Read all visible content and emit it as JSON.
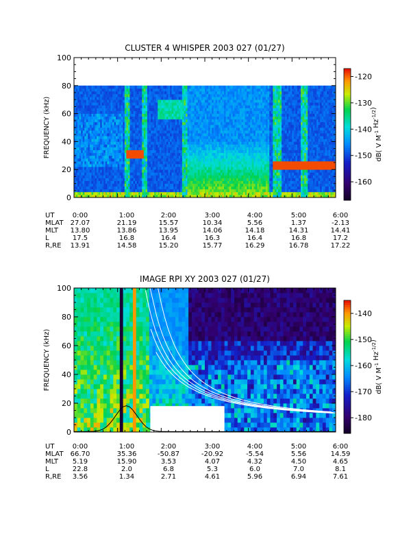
{
  "chart_data": [
    {
      "type": "heatmap",
      "title": "CLUSTER 4 WHISPER 2003 027 (01/27)",
      "ylabel": "FREQUENCY (kHz)",
      "ylim": [
        0,
        100
      ],
      "yticks": [
        "0",
        "20",
        "40",
        "60",
        "80",
        "100"
      ],
      "data_top_khz": 80,
      "colorbar": {
        "label_main": "dB( V M",
        "label_sup1": "-1",
        "label_mid": " Hz",
        "label_sup2": "-1/2",
        "label_end": ")",
        "range": [
          -167,
          -117
        ],
        "ticks": [
          "-120",
          "-130",
          "-140",
          "-150",
          "-160"
        ],
        "tick_values": [
          -120,
          -130,
          -140,
          -150,
          -160
        ]
      },
      "data_gaps": [],
      "table": {
        "row_labels": [
          "UT",
          "MLAT",
          "MLT",
          "L",
          "R,RE"
        ],
        "columns": [
          [
            "0:00",
            "27.07",
            "13.80",
            "17.5",
            "13.91"
          ],
          [
            "1:00",
            "21.19",
            "13.86",
            "16.8",
            "14.58"
          ],
          [
            "2:00",
            "15.57",
            "13.95",
            "16.4",
            "15.20"
          ],
          [
            "3:00",
            "10.34",
            "14.06",
            "16.3",
            "15.77"
          ],
          [
            "4:00",
            "5.56",
            "14.18",
            "16.4",
            "16.29"
          ],
          [
            "5:00",
            "1.37",
            "14.31",
            "16.8",
            "16.78"
          ],
          [
            "6:00",
            "-2.13",
            "14.41",
            "17.2",
            "17.22"
          ]
        ]
      }
    },
    {
      "type": "heatmap",
      "title": "IMAGE RPI XY 2003 027 (01/27)",
      "ylabel": "FREQUENCY (kHz)",
      "ylim": [
        0,
        100
      ],
      "yticks": [
        "0",
        "20",
        "40",
        "60",
        "80",
        "100"
      ],
      "data_top_khz": 100,
      "colorbar": {
        "label_main": "dB( V M",
        "label_sup1": "-1",
        "label_mid": " Hz",
        "label_sup2": "-1/2",
        "label_end": ")",
        "range": [
          -186,
          -135
        ],
        "ticks": [
          "-140",
          "-150",
          "-160",
          "-170",
          "-180"
        ],
        "tick_values": [
          -140,
          -150,
          -160,
          -170,
          -180
        ]
      },
      "data_gaps": [
        {
          "t0": 1.75,
          "t1": 3.45,
          "f0": 0,
          "f1": 18
        }
      ],
      "table": {
        "row_labels": [
          "UT",
          "MLAT",
          "MLT",
          "L",
          "R,RE"
        ],
        "columns": [
          [
            "0:00",
            "66.70",
            "5.19",
            "22.8",
            "3.56"
          ],
          [
            "1:00",
            "35.36",
            "15.90",
            "2.0",
            "1.34"
          ],
          [
            "2:00",
            "-50.87",
            "3.53",
            "6.8",
            "2.71"
          ],
          [
            "3:00",
            "-20.92",
            "4.07",
            "5.3",
            "4.61"
          ],
          [
            "4:00",
            "-5.54",
            "4.32",
            "6.0",
            "5.96"
          ],
          [
            "5:00",
            "5.56",
            "4.50",
            "7.0",
            "6.94"
          ],
          [
            "6:00",
            "14.59",
            "4.65",
            "8.1",
            "7.61"
          ]
        ]
      }
    }
  ]
}
